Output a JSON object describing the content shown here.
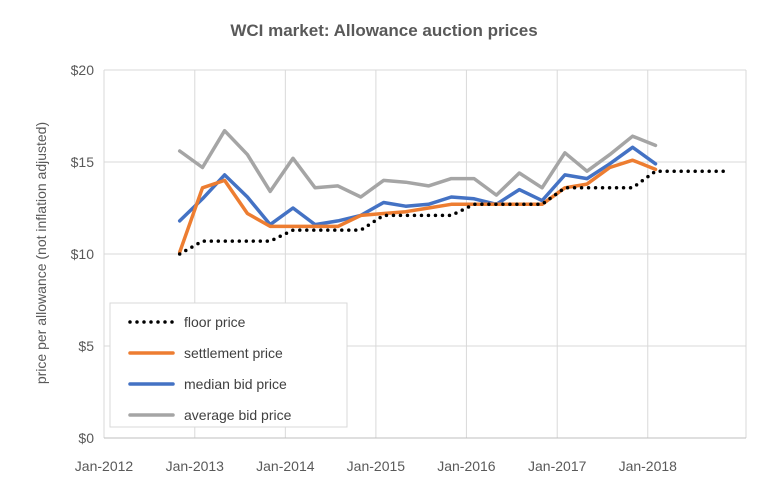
{
  "chart_data": {
    "type": "line",
    "title": "WCI market: Allowance auction prices",
    "xlabel": "",
    "ylabel": "price per allowance (not inflation adjusted)",
    "xlim": [
      "2012-01-01",
      "2019-02-01"
    ],
    "ylim": [
      0,
      20
    ],
    "x_ticks": [
      "2012-01-01",
      "2013-01-01",
      "2014-01-01",
      "2015-01-01",
      "2016-01-01",
      "2017-01-01",
      "2018-01-01"
    ],
    "x_tick_labels": [
      "Jan-2012",
      "Jan-2013",
      "Jan-2014",
      "Jan-2015",
      "Jan-2016",
      "Jan-2017",
      "Jan-2018"
    ],
    "y_ticks": [
      0,
      5,
      10,
      15,
      20
    ],
    "y_tick_labels": [
      "$0",
      "$5",
      "$10",
      "$15",
      "$20"
    ],
    "grid": "vertical-and-horizontal",
    "legend_position": "bottom-left",
    "series": [
      {
        "name": "floor price",
        "color": "#000000",
        "style": "dotted",
        "points": [
          [
            "2012-11-01",
            10.0
          ],
          [
            "2013-02-01",
            10.7
          ],
          [
            "2013-05-01",
            10.7
          ],
          [
            "2013-08-01",
            10.7
          ],
          [
            "2013-11-01",
            10.7
          ],
          [
            "2014-02-01",
            11.3
          ],
          [
            "2014-05-01",
            11.3
          ],
          [
            "2014-08-01",
            11.3
          ],
          [
            "2014-11-01",
            11.3
          ],
          [
            "2015-02-01",
            12.1
          ],
          [
            "2015-05-01",
            12.1
          ],
          [
            "2015-08-01",
            12.1
          ],
          [
            "2015-11-01",
            12.1
          ],
          [
            "2016-02-01",
            12.7
          ],
          [
            "2016-05-01",
            12.7
          ],
          [
            "2016-08-01",
            12.7
          ],
          [
            "2016-11-01",
            12.7
          ],
          [
            "2017-02-01",
            13.6
          ],
          [
            "2017-05-01",
            13.6
          ],
          [
            "2017-08-01",
            13.6
          ],
          [
            "2017-11-01",
            13.6
          ],
          [
            "2018-02-01",
            14.5
          ],
          [
            "2018-05-01",
            14.5
          ],
          [
            "2018-08-01",
            14.5
          ],
          [
            "2018-11-01",
            14.5
          ]
        ]
      },
      {
        "name": "settlement price",
        "color": "#ED7D31",
        "style": "solid",
        "points": [
          [
            "2012-11-01",
            10.1
          ],
          [
            "2013-02-01",
            13.6
          ],
          [
            "2013-05-01",
            14.0
          ],
          [
            "2013-08-01",
            12.2
          ],
          [
            "2013-11-01",
            11.5
          ],
          [
            "2014-02-01",
            11.5
          ],
          [
            "2014-05-01",
            11.5
          ],
          [
            "2014-08-01",
            11.5
          ],
          [
            "2014-11-01",
            12.1
          ],
          [
            "2015-02-01",
            12.2
          ],
          [
            "2015-05-01",
            12.3
          ],
          [
            "2015-08-01",
            12.5
          ],
          [
            "2015-11-01",
            12.7
          ],
          [
            "2016-02-01",
            12.7
          ],
          [
            "2016-05-01",
            12.7
          ],
          [
            "2016-08-01",
            12.7
          ],
          [
            "2016-11-01",
            12.7
          ],
          [
            "2017-02-01",
            13.6
          ],
          [
            "2017-05-01",
            13.8
          ],
          [
            "2017-08-01",
            14.7
          ],
          [
            "2017-11-01",
            15.1
          ],
          [
            "2018-02-01",
            14.6
          ]
        ]
      },
      {
        "name": "median bid price",
        "color": "#4472C4",
        "style": "solid",
        "points": [
          [
            "2012-11-01",
            11.8
          ],
          [
            "2013-02-01",
            13.0
          ],
          [
            "2013-05-01",
            14.3
          ],
          [
            "2013-08-01",
            13.1
          ],
          [
            "2013-11-01",
            11.6
          ],
          [
            "2014-02-01",
            12.5
          ],
          [
            "2014-05-01",
            11.6
          ],
          [
            "2014-08-01",
            11.8
          ],
          [
            "2014-11-01",
            12.1
          ],
          [
            "2015-02-01",
            12.8
          ],
          [
            "2015-05-01",
            12.6
          ],
          [
            "2015-08-01",
            12.7
          ],
          [
            "2015-11-01",
            13.1
          ],
          [
            "2016-02-01",
            13.0
          ],
          [
            "2016-05-01",
            12.7
          ],
          [
            "2016-08-01",
            13.5
          ],
          [
            "2016-11-01",
            12.9
          ],
          [
            "2017-02-01",
            14.3
          ],
          [
            "2017-05-01",
            14.1
          ],
          [
            "2017-08-01",
            14.9
          ],
          [
            "2017-11-01",
            15.8
          ],
          [
            "2018-02-01",
            14.9
          ]
        ]
      },
      {
        "name": "average bid price",
        "color": "#A5A5A5",
        "style": "solid",
        "points": [
          [
            "2012-11-01",
            15.6
          ],
          [
            "2013-02-01",
            14.7
          ],
          [
            "2013-05-01",
            16.7
          ],
          [
            "2013-08-01",
            15.4
          ],
          [
            "2013-11-01",
            13.4
          ],
          [
            "2014-02-01",
            15.2
          ],
          [
            "2014-05-01",
            13.6
          ],
          [
            "2014-08-01",
            13.7
          ],
          [
            "2014-11-01",
            13.1
          ],
          [
            "2015-02-01",
            14.0
          ],
          [
            "2015-05-01",
            13.9
          ],
          [
            "2015-08-01",
            13.7
          ],
          [
            "2015-11-01",
            14.1
          ],
          [
            "2016-02-01",
            14.1
          ],
          [
            "2016-05-01",
            13.2
          ],
          [
            "2016-08-01",
            14.4
          ],
          [
            "2016-11-01",
            13.6
          ],
          [
            "2017-02-01",
            15.5
          ],
          [
            "2017-05-01",
            14.5
          ],
          [
            "2017-08-01",
            15.4
          ],
          [
            "2017-11-01",
            16.4
          ],
          [
            "2018-02-01",
            15.9
          ]
        ]
      }
    ]
  }
}
